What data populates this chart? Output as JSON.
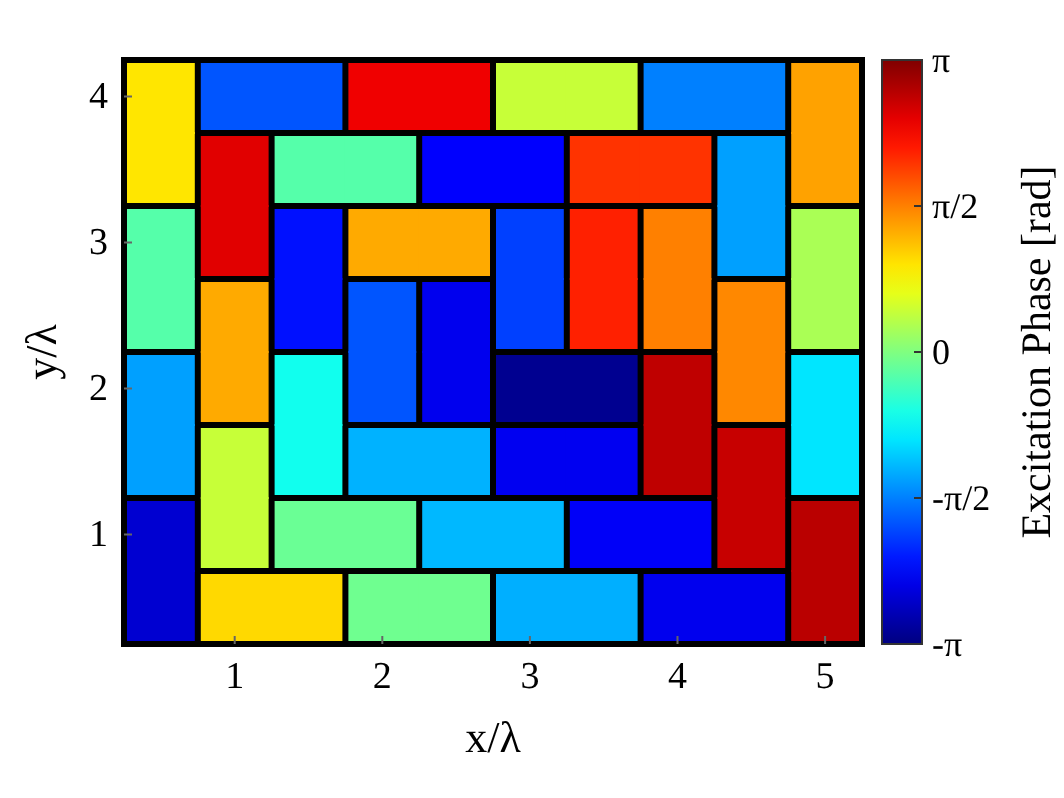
{
  "chart_data": {
    "type": "heatmap",
    "xlabel": "x/λ",
    "ylabel": "y/λ",
    "clabel": "Excitation Phase [rad]",
    "categories": [
      null,
      "1",
      null,
      "2",
      null,
      "3",
      null,
      "4",
      null,
      "5"
    ],
    "y_categories": [
      "4",
      null,
      "3",
      null,
      "2",
      null,
      "1",
      null
    ],
    "cells": [
      [
        0.94,
        -1.83,
        -1.83,
        2.45,
        2.45,
        0.44,
        0.44,
        -1.57,
        -1.57,
        1.36
      ],
      [
        0.94,
        2.54,
        -0.26,
        -0.26,
        -2.36,
        -2.36,
        2.04,
        2.04,
        -1.37,
        1.36
      ],
      [
        -0.26,
        2.54,
        -2.26,
        1.31,
        1.31,
        -1.96,
        2.16,
        1.57,
        -1.37,
        0.26
      ],
      [
        -0.26,
        1.31,
        -2.26,
        -1.83,
        -2.46,
        -1.96,
        2.16,
        1.57,
        1.52,
        0.26
      ],
      [
        -1.37,
        1.31,
        -0.68,
        -1.83,
        -2.46,
        -3.04,
        -3.04,
        2.75,
        1.52,
        -0.94
      ],
      [
        -1.37,
        0.44,
        -0.68,
        -1.26,
        -1.26,
        -2.44,
        -2.44,
        2.75,
        2.7,
        -0.94
      ],
      [
        -2.64,
        0.44,
        -0.13,
        -0.13,
        -1.22,
        -1.22,
        -2.4,
        -2.4,
        2.7,
        2.78
      ],
      [
        -2.64,
        1.02,
        1.02,
        -0.1,
        -0.1,
        -1.28,
        -1.28,
        -2.46,
        -2.46,
        2.78
      ]
    ],
    "clim": [
      -3.1416,
      3.1416
    ],
    "cticks": [
      {
        "value": -3.1416,
        "label": "-π"
      },
      {
        "value": -1.5708,
        "label": "-π/2"
      },
      0,
      {
        "value": 1.5708,
        "label": "π/2"
      },
      {
        "value": 3.1416,
        "label": "π"
      }
    ]
  }
}
